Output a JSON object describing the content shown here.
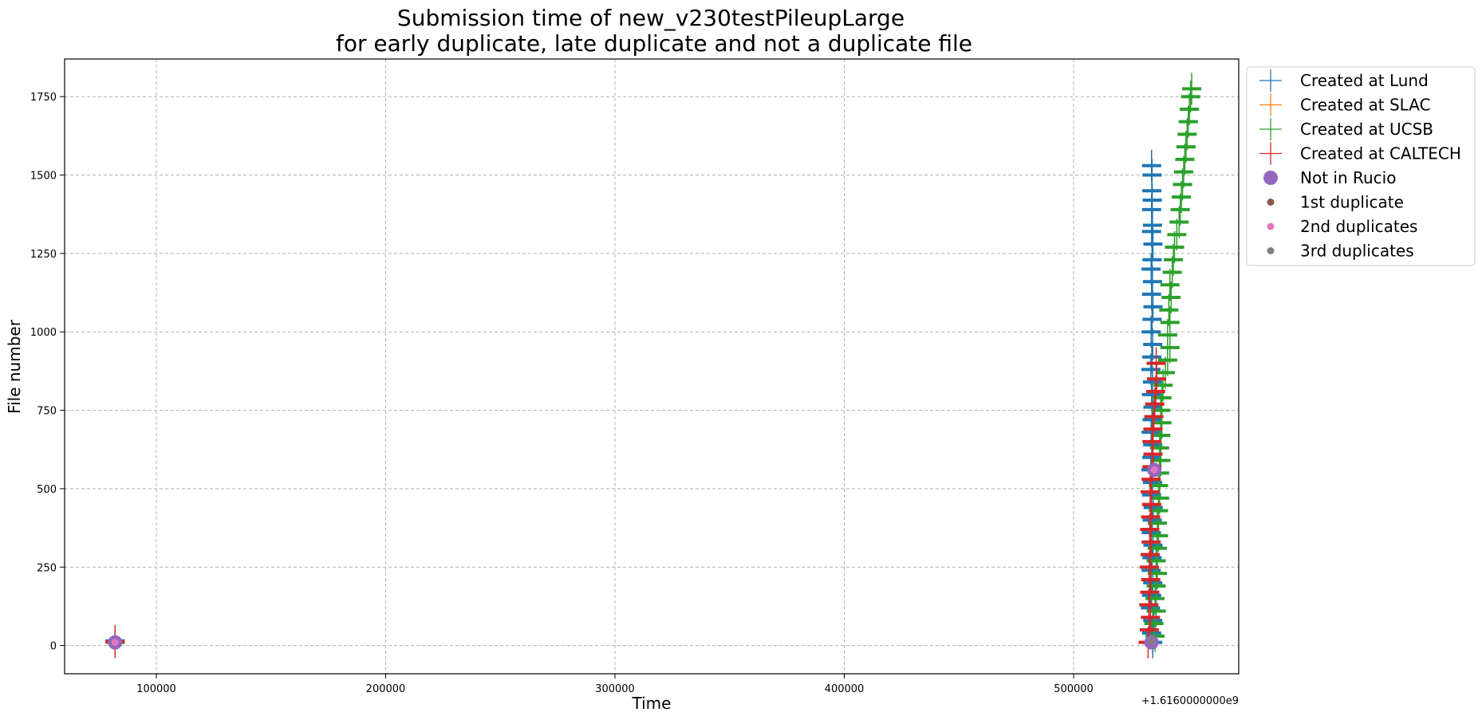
{
  "chart_data": {
    "type": "scatter",
    "title": [
      "Submission time of new_v230testPileupLarge",
      "for early duplicate, late duplicate and not a duplicate file"
    ],
    "xlabel": "Time",
    "ylabel": "File number",
    "x_offset_label": "+1.6160000000e9",
    "xlim": [
      60000,
      572000
    ],
    "ylim": [
      -90,
      1870
    ],
    "x_ticks": [
      100000,
      200000,
      300000,
      400000,
      500000
    ],
    "y_ticks": [
      0,
      250,
      500,
      750,
      1000,
      1250,
      1500,
      1750
    ],
    "grid": true,
    "legend_position": "upper-left-outside",
    "series": [
      {
        "name": "Created at Lund",
        "marker": "plus",
        "color": "#1f77b4",
        "points": [
          [
            82000,
            15
          ],
          [
            534500,
            10
          ],
          [
            534000,
            40
          ],
          [
            534500,
            80
          ],
          [
            533500,
            120
          ],
          [
            534000,
            160
          ],
          [
            534500,
            200
          ],
          [
            533800,
            240
          ],
          [
            534200,
            280
          ],
          [
            534600,
            320
          ],
          [
            533900,
            360
          ],
          [
            534300,
            400
          ],
          [
            534700,
            440
          ],
          [
            534000,
            480
          ],
          [
            534400,
            520
          ],
          [
            533700,
            560
          ],
          [
            534100,
            600
          ],
          [
            534500,
            640
          ],
          [
            533800,
            680
          ],
          [
            534200,
            720
          ],
          [
            534600,
            760
          ],
          [
            534000,
            800
          ],
          [
            534400,
            840
          ],
          [
            533700,
            880
          ],
          [
            534100,
            920
          ],
          [
            534500,
            960
          ],
          [
            533800,
            1000
          ],
          [
            534200,
            1040
          ],
          [
            534600,
            1080
          ],
          [
            534000,
            1120
          ],
          [
            534400,
            1160
          ],
          [
            533800,
            1200
          ],
          [
            534200,
            1230
          ],
          [
            534600,
            1280
          ],
          [
            534000,
            1320
          ],
          [
            534400,
            1340
          ],
          [
            534000,
            1390
          ],
          [
            534300,
            1420
          ],
          [
            534100,
            1450
          ],
          [
            534200,
            1500
          ],
          [
            534000,
            1530
          ]
        ]
      },
      {
        "name": "Created at SLAC",
        "marker": "plus",
        "color": "#ff7f0e",
        "points": []
      },
      {
        "name": "Created at UCSB",
        "marker": "plus",
        "color": "#2ca02c",
        "points": [
          [
            82000,
            10
          ],
          [
            535500,
            30
          ],
          [
            535000,
            70
          ],
          [
            536000,
            110
          ],
          [
            535500,
            150
          ],
          [
            536000,
            190
          ],
          [
            536500,
            230
          ],
          [
            536000,
            270
          ],
          [
            536500,
            310
          ],
          [
            537000,
            350
          ],
          [
            536500,
            390
          ],
          [
            537000,
            430
          ],
          [
            537500,
            470
          ],
          [
            537000,
            510
          ],
          [
            537500,
            550
          ],
          [
            538000,
            590
          ],
          [
            537500,
            630
          ],
          [
            538000,
            670
          ],
          [
            538500,
            710
          ],
          [
            538000,
            750
          ],
          [
            538500,
            790
          ],
          [
            539000,
            830
          ],
          [
            540000,
            870
          ],
          [
            541000,
            910
          ],
          [
            542000,
            950
          ],
          [
            541000,
            990
          ],
          [
            542000,
            1030
          ],
          [
            541500,
            1070
          ],
          [
            542500,
            1110
          ],
          [
            542000,
            1150
          ],
          [
            543000,
            1190
          ],
          [
            543500,
            1230
          ],
          [
            544000,
            1270
          ],
          [
            545000,
            1310
          ],
          [
            546000,
            1350
          ],
          [
            546500,
            1390
          ],
          [
            547000,
            1430
          ],
          [
            547500,
            1470
          ],
          [
            548000,
            1510
          ],
          [
            548500,
            1550
          ],
          [
            549000,
            1590
          ],
          [
            549500,
            1630
          ],
          [
            550000,
            1670
          ],
          [
            550500,
            1710
          ],
          [
            551000,
            1750
          ],
          [
            551500,
            1775
          ]
        ]
      },
      {
        "name": "Created at CALTECH",
        "marker": "plus",
        "color": "#d62728",
        "points": [
          [
            82000,
            12
          ],
          [
            532500,
            10
          ],
          [
            533000,
            50
          ],
          [
            533500,
            90
          ],
          [
            532800,
            130
          ],
          [
            533200,
            170
          ],
          [
            533600,
            210
          ],
          [
            533000,
            250
          ],
          [
            533400,
            290
          ],
          [
            533800,
            330
          ],
          [
            533200,
            370
          ],
          [
            533600,
            410
          ],
          [
            534000,
            450
          ],
          [
            533400,
            490
          ],
          [
            533800,
            530
          ],
          [
            534200,
            570
          ],
          [
            534600,
            610
          ],
          [
            534200,
            650
          ],
          [
            534600,
            690
          ],
          [
            535000,
            730
          ],
          [
            535400,
            770
          ],
          [
            535800,
            810
          ],
          [
            536200,
            850
          ],
          [
            536000,
            900
          ]
        ]
      },
      {
        "name": "Not in Rucio",
        "marker": "circle-large",
        "color": "#9467bd",
        "points": [
          [
            82000,
            10
          ],
          [
            535200,
            560
          ],
          [
            534000,
            10
          ]
        ]
      },
      {
        "name": "1st duplicate",
        "marker": "circle-small",
        "color": "#8c564b",
        "points": [
          [
            82000,
            10
          ],
          [
            535200,
            560
          ]
        ]
      },
      {
        "name": "2nd duplicates",
        "marker": "circle-small",
        "color": "#e377c2",
        "points": [
          [
            82000,
            10
          ],
          [
            535200,
            560
          ],
          [
            534000,
            15
          ]
        ]
      },
      {
        "name": "3rd duplicates",
        "marker": "circle-small",
        "color": "#7f7f7f",
        "points": [
          [
            534000,
            15
          ]
        ]
      }
    ]
  }
}
